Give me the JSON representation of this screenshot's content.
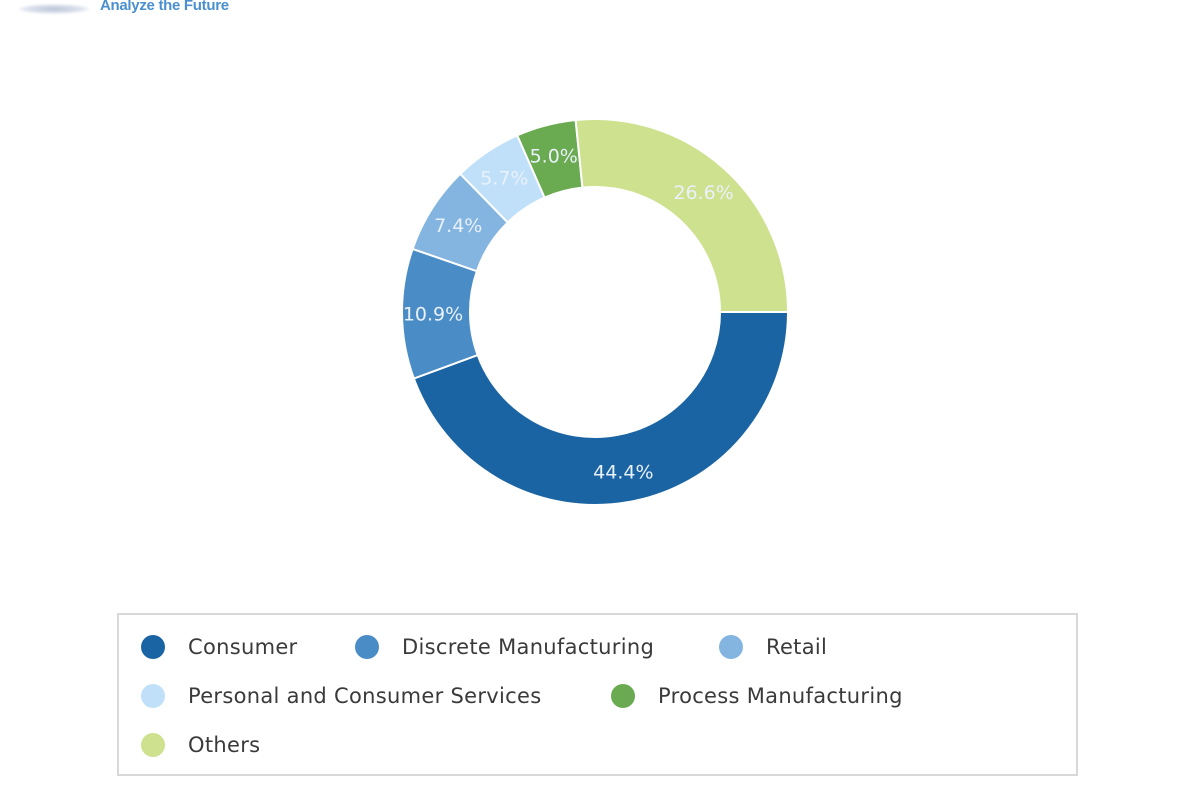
{
  "header": {
    "logo_tagline": "Analyze the Future"
  },
  "chart_data": {
    "type": "pie",
    "variant": "donut",
    "title": "",
    "start": "3 o'clock, clockwise",
    "categories": [
      "Consumer",
      "Discrete Manufacturing",
      "Retail",
      "Personal and Consumer Services",
      "Process Manufacturing",
      "Others"
    ],
    "values": [
      44.4,
      10.9,
      7.4,
      5.7,
      5.0,
      26.6
    ],
    "labels": [
      "44.4%",
      "10.9%",
      "7.4%",
      "5.7%",
      "5.0%",
      "26.6%"
    ],
    "colors": [
      "#1b64a3",
      "#4a8cc6",
      "#83b5e0",
      "#bfe0f8",
      "#6aaa50",
      "#cde18e"
    ],
    "unit": "%",
    "legend_position": "bottom"
  }
}
